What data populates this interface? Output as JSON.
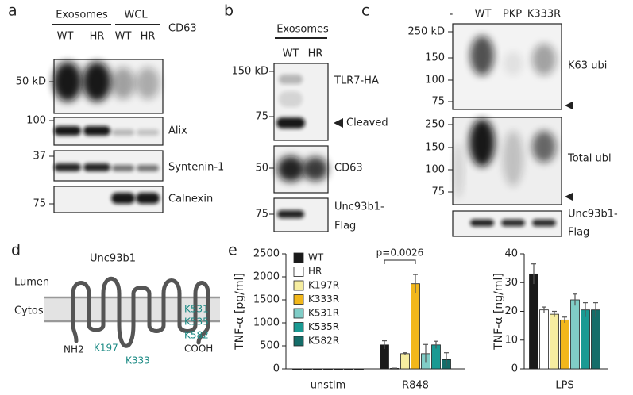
{
  "panel_labels": [
    "a",
    "b",
    "c",
    "d",
    "e"
  ],
  "panel_a": {
    "groups": [
      "Exosomes",
      "WCL"
    ],
    "lanes": [
      "WT",
      "HR",
      "WT",
      "HR"
    ],
    "blots": [
      {
        "marker": "50 kD",
        "name": "CD63"
      },
      {
        "marker": "100",
        "name": "Alix"
      },
      {
        "marker": "37",
        "name": "Syntenin-1"
      },
      {
        "marker": "75",
        "name": "Calnexin"
      }
    ]
  },
  "panel_b": {
    "group": "Exosomes",
    "lanes": [
      "WT",
      "HR"
    ],
    "markers": [
      "150 kD",
      "75",
      "50",
      "75"
    ],
    "names": [
      "TLR7-HA",
      "Cleaved",
      "CD63",
      "Unc93b1-",
      "Flag"
    ]
  },
  "panel_c": {
    "lanes": [
      "-",
      "WT",
      "PKP",
      "K333R"
    ],
    "markers": [
      "250 kD",
      "150",
      "100",
      "75",
      "250",
      "150",
      "100",
      "75"
    ],
    "names": [
      "K63 ubi",
      "Total ubi",
      "Unc93b1-",
      "Flag"
    ]
  },
  "panel_d": {
    "title": "Unc93b1",
    "compartments": [
      "Lumen",
      "Cytosol"
    ],
    "labels": [
      "NH2",
      "K197",
      "K333",
      "K531",
      "K535",
      "K582",
      "COOH"
    ]
  },
  "chart_data": [
    {
      "type": "bar",
      "ylabel": "TNF-α [pg/ml]",
      "categories": [
        "unstim",
        "R848"
      ],
      "legend": "top-left",
      "annotation": "p=0.0026",
      "ylim": [
        0,
        2500
      ],
      "yticks": [
        0,
        500,
        1000,
        1500,
        2000,
        2500
      ],
      "series": [
        {
          "name": "WT",
          "color": "#1a1a1a",
          "values": [
            0,
            520
          ],
          "errors": [
            0,
            90
          ]
        },
        {
          "name": "HR",
          "color": "#ffffff",
          "values": [
            0,
            10
          ],
          "errors": [
            0,
            5
          ]
        },
        {
          "name": "K197R",
          "color": "#f6eda0",
          "values": [
            0,
            330
          ],
          "errors": [
            0,
            20
          ]
        },
        {
          "name": "K333R",
          "color": "#f2b71b",
          "values": [
            0,
            1850
          ],
          "errors": [
            0,
            200
          ]
        },
        {
          "name": "K531R",
          "color": "#80cdc7",
          "values": [
            0,
            330
          ],
          "errors": [
            0,
            200
          ]
        },
        {
          "name": "K535R",
          "color": "#1a9a93",
          "values": [
            0,
            520
          ],
          "errors": [
            0,
            80
          ]
        },
        {
          "name": "K582R",
          "color": "#156d69",
          "values": [
            0,
            200
          ],
          "errors": [
            0,
            150
          ]
        }
      ]
    },
    {
      "type": "bar",
      "ylabel": "TNF-α [ng/ml]",
      "categories": [
        "LPS"
      ],
      "ylim": [
        0,
        40
      ],
      "yticks": [
        0,
        10,
        20,
        30,
        40
      ],
      "series": [
        {
          "color": "#1a1a1a",
          "values": [
            33
          ],
          "errors": [
            3.5
          ]
        },
        {
          "color": "#ffffff",
          "values": [
            20.5
          ],
          "errors": [
            1
          ]
        },
        {
          "color": "#f6eda0",
          "values": [
            19
          ],
          "errors": [
            1
          ]
        },
        {
          "color": "#f2b71b",
          "values": [
            17
          ],
          "errors": [
            1
          ]
        },
        {
          "color": "#80cdc7",
          "values": [
            24
          ],
          "errors": [
            2
          ]
        },
        {
          "color": "#1a9a93",
          "values": [
            20.5
          ],
          "errors": [
            2.5
          ]
        },
        {
          "color": "#156d69",
          "values": [
            20.5
          ],
          "errors": [
            2.5
          ]
        }
      ]
    }
  ]
}
